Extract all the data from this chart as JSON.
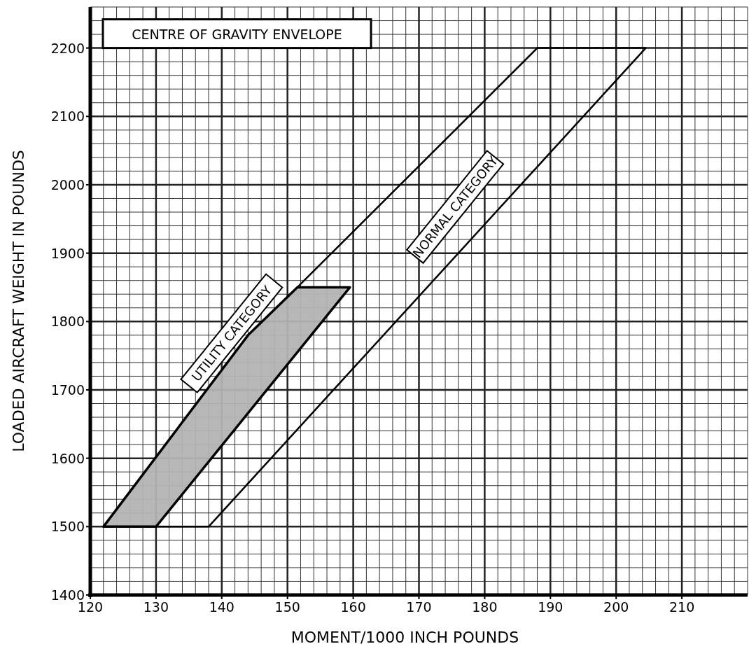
{
  "chart_data": {
    "type": "line",
    "title": "CENTRE OF GRAVITY ENVELOPE",
    "xlabel": "MOMENT/1000 INCH POUNDS",
    "ylabel": "LOADED AIRCRAFT WEIGHT IN POUNDS",
    "xlim": [
      120,
      220
    ],
    "xticks": [
      120,
      130,
      140,
      150,
      160,
      170,
      180,
      190,
      200,
      210
    ],
    "ylim": [
      1400,
      2260
    ],
    "yticks": [
      1400,
      1500,
      1600,
      1700,
      1800,
      1900,
      2000,
      2100,
      2200
    ],
    "grid": true,
    "series": [
      {
        "color": "#000000",
        "x": [
          151.5,
          188,
          204.5,
          138,
          130
        ],
        "values": [
          1850,
          2200,
          2200,
          1500,
          1500
        ]
      },
      {
        "type": "area",
        "color": "#b3b3b3",
        "x": [
          122,
          144,
          151.5,
          159.5,
          130,
          122
        ],
        "values": [
          1500,
          1780,
          1850,
          1850,
          1500,
          1500
        ]
      }
    ],
    "annotations": [
      "NORMAL CATEGORY",
      "UTILITY CATEGORY"
    ]
  }
}
